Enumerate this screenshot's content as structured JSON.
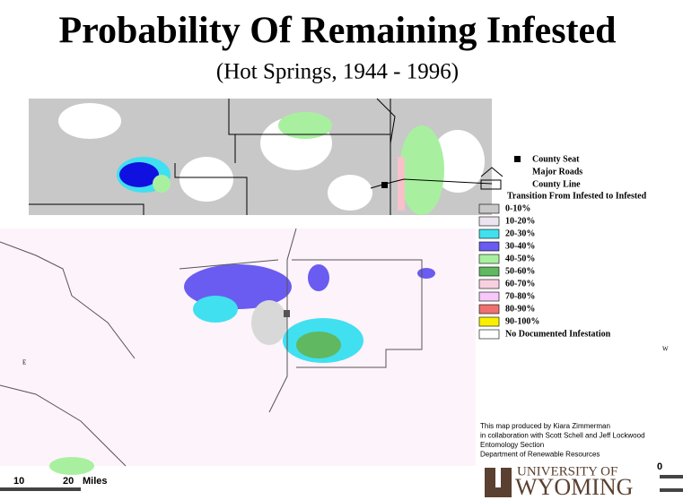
{
  "header": {
    "title": "Probability Of Remaining Infested",
    "subtitle": "(Hot Springs, 1944 - 1996)"
  },
  "legend": {
    "symbols": [
      {
        "label": "County Seat",
        "kind": "seat"
      },
      {
        "label": "Major Roads",
        "kind": "road"
      },
      {
        "label": "County Line",
        "kind": "county"
      }
    ],
    "heading": "Transition From Infested to Infested",
    "classes": [
      {
        "label": "0-10%",
        "color": "#c8c8c8"
      },
      {
        "label": "10-20%",
        "color": "#ece4ee"
      },
      {
        "label": "20-30%",
        "color": "#40e0f0"
      },
      {
        "label": "30-40%",
        "color": "#6a5cf0"
      },
      {
        "label": "40-50%",
        "color": "#a8f0a0"
      },
      {
        "label": "50-60%",
        "color": "#60b860"
      },
      {
        "label": "60-70%",
        "color": "#f8d0e0"
      },
      {
        "label": "70-80%",
        "color": "#f8c8f8"
      },
      {
        "label": "80-90%",
        "color": "#f07070"
      },
      {
        "label": "90-100%",
        "color": "#f8f000"
      },
      {
        "label": "No Documented Infestation",
        "color": "#ffffff"
      }
    ]
  },
  "credits": [
    "This map produced by Kiara Zimmerman",
    "in collaboration with Scott Schell and Jeff Lockwood",
    "Entomology Section",
    "Department of Renewable Resources"
  ],
  "scale": [
    "10",
    "20",
    "Miles"
  ],
  "compass": [
    "E",
    "W"
  ],
  "corner": "0",
  "logo": {
    "line1": "UNIVERSITY OF",
    "line2": "WYOMING"
  }
}
